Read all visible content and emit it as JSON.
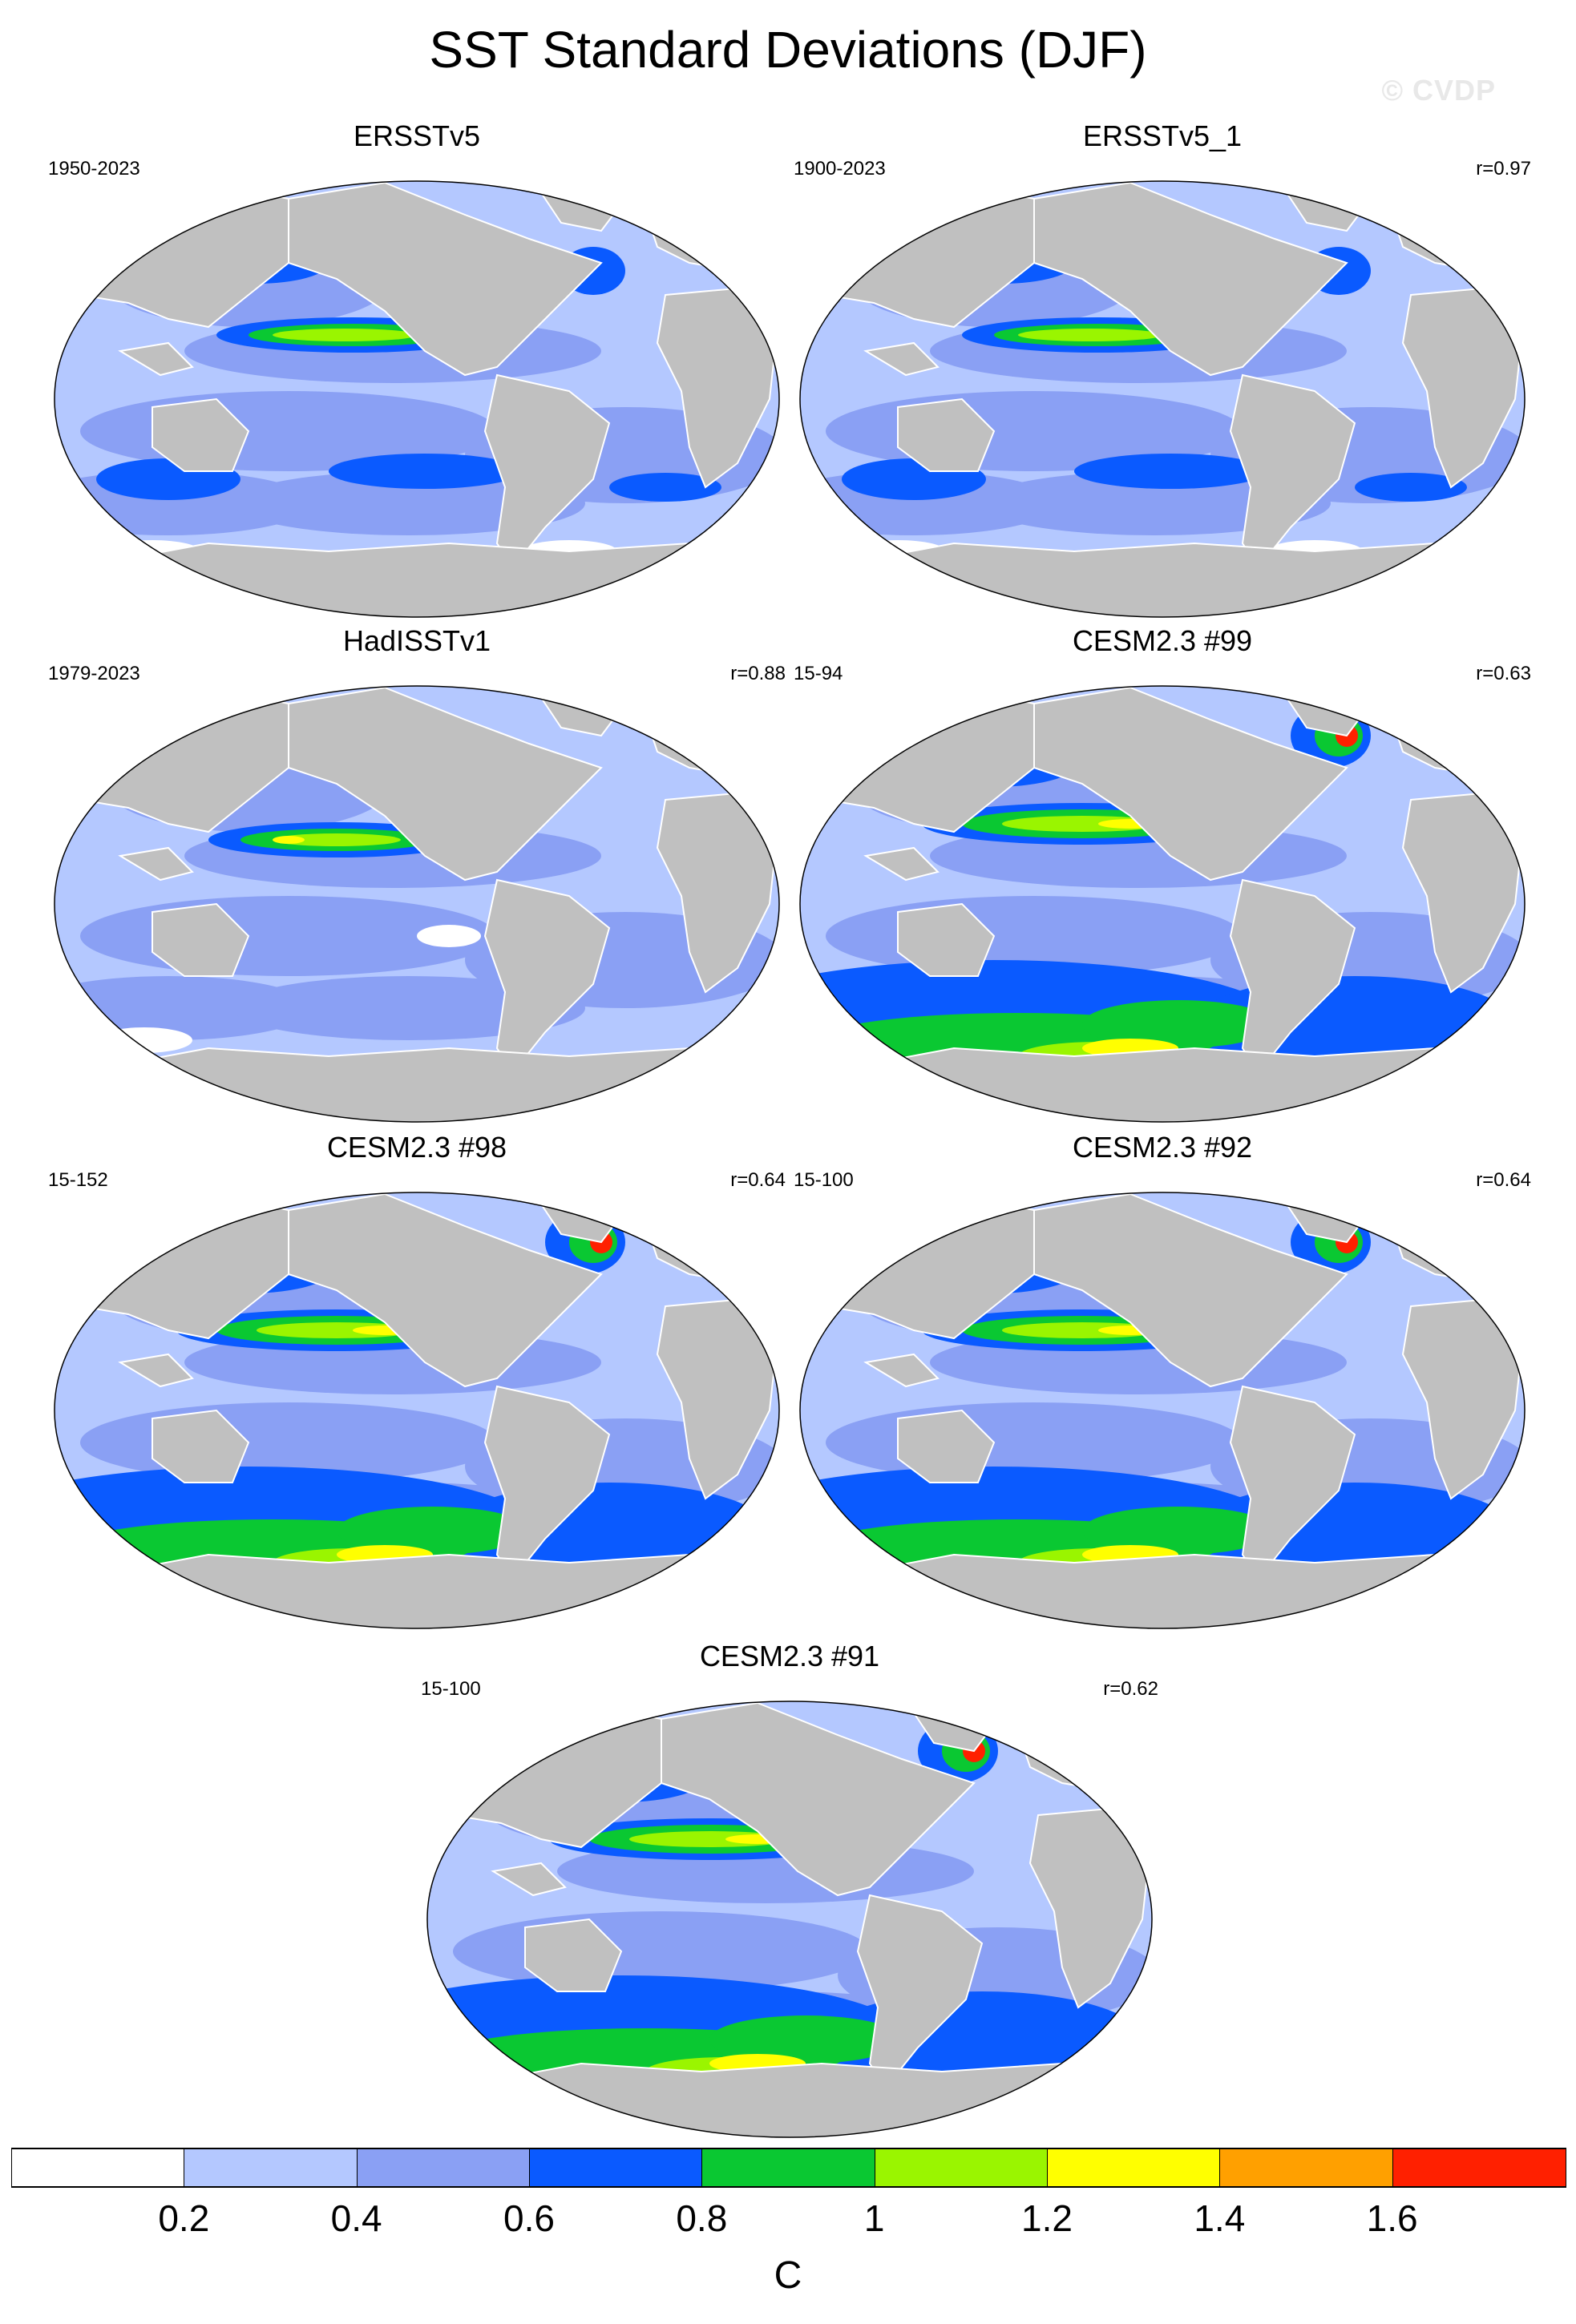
{
  "title": "SST Standard Deviations (DJF)",
  "watermark": "© CVDP",
  "panels": [
    {
      "title": "ERSSTv5",
      "period": "1950-2023",
      "corr": ""
    },
    {
      "title": "ERSSTv5_1",
      "period": "1900-2023",
      "corr": "r=0.97"
    },
    {
      "title": "HadISSTv1",
      "period": "1979-2023",
      "corr": "r=0.88"
    },
    {
      "title": "CESM2.3 #99",
      "period": "15-94",
      "corr": "r=0.63"
    },
    {
      "title": "CESM2.3 #98",
      "period": "15-152",
      "corr": "r=0.64"
    },
    {
      "title": "CESM2.3 #92",
      "period": "15-100",
      "corr": "r=0.64"
    },
    {
      "title": "CESM2.3 #91",
      "period": "15-100",
      "corr": "r=0.62"
    }
  ],
  "colorbar": {
    "units": "C",
    "labels": [
      "0.2",
      "0.4",
      "0.6",
      "0.8",
      "1",
      "1.2",
      "1.4",
      "1.6"
    ],
    "colors": [
      "#ffffff",
      "#b4c8ff",
      "#8aa0f4",
      "#0a5aff",
      "#0ac832",
      "#9af500",
      "#ffff00",
      "#ffa000",
      "#ff2000"
    ]
  },
  "map_colors": {
    "land": "#c0c0c0",
    "ocean_low": "#b4c8ff",
    "ocean_mid": "#8aa0f4",
    "ocean_high": "#0a5aff",
    "green": "#0ac832",
    "lime": "#9af500",
    "yellow": "#ffff00",
    "orange": "#ffa000",
    "red": "#ff2000",
    "white": "#ffffff"
  }
}
